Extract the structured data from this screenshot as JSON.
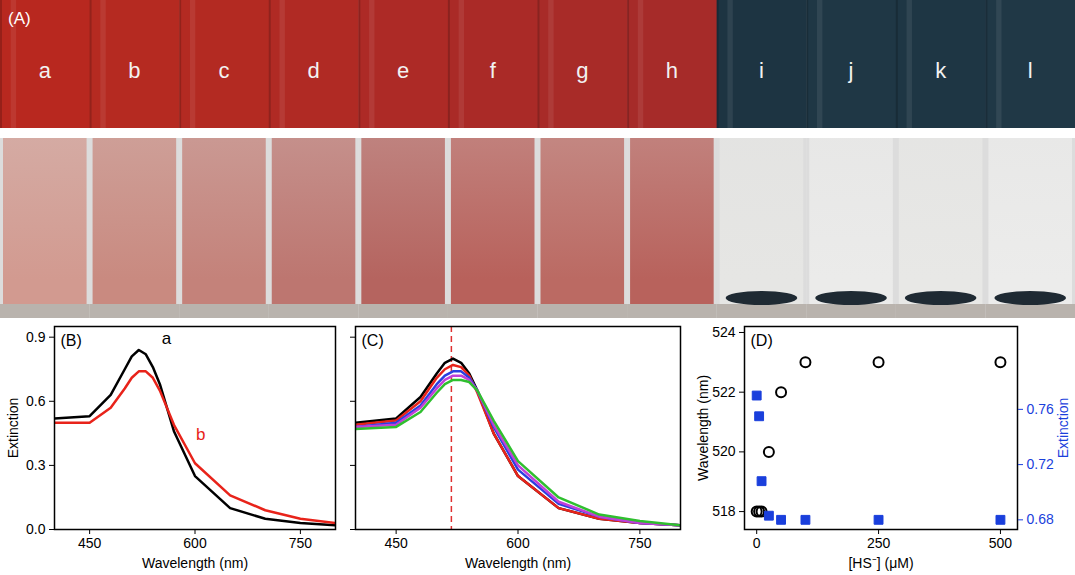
{
  "panel_a": {
    "label": "(A)",
    "samples": [
      "a",
      "b",
      "c",
      "d",
      "e",
      "f",
      "g",
      "h",
      "i",
      "j",
      "k",
      "l"
    ],
    "colors": [
      "#b8281f",
      "#b52a21",
      "#b32a22",
      "#b02a24",
      "#ad2a26",
      "#aa2a27",
      "#a82b28",
      "#a62b29",
      "#1d3442",
      "#1f3745",
      "#1e3644",
      "#203846"
    ],
    "lower_colors": [
      "#d29a90",
      "#c98a80",
      "#c4827a",
      "#bd7670",
      "#b5645f",
      "#b8615b",
      "#bb6a63",
      "#b8625c",
      "#e6e6e4",
      "#ebebea",
      "#e8e8e6",
      "#ececeb"
    ]
  },
  "chart_data": [
    {
      "type": "line",
      "title": "(B)",
      "x_label": "Wavelength (nm)",
      "y_label": "Extinction",
      "x": [
        400,
        450,
        480,
        500,
        510,
        520,
        530,
        540,
        550,
        570,
        600,
        650,
        700,
        750,
        800
      ],
      "series": [
        {
          "name": "a",
          "color": "#000000",
          "values": [
            0.52,
            0.53,
            0.63,
            0.75,
            0.81,
            0.84,
            0.82,
            0.76,
            0.68,
            0.46,
            0.25,
            0.1,
            0.05,
            0.03,
            0.02
          ]
        },
        {
          "name": "b",
          "color": "#e8231a",
          "values": [
            0.5,
            0.5,
            0.57,
            0.66,
            0.71,
            0.74,
            0.74,
            0.71,
            0.65,
            0.49,
            0.31,
            0.16,
            0.09,
            0.05,
            0.03
          ]
        }
      ],
      "xlim": [
        400,
        800
      ],
      "xticks": [
        450,
        600,
        750
      ],
      "ylim": [
        0,
        0.95
      ],
      "yticks": [
        {
          "value": 0,
          "label": "0.0"
        },
        0.3,
        0.6,
        0.9
      ]
    },
    {
      "type": "line",
      "title": "(C)",
      "x_label": "Wavelength (nm)",
      "x": [
        400,
        450,
        480,
        500,
        510,
        520,
        530,
        540,
        550,
        570,
        600,
        650,
        700,
        750,
        800
      ],
      "series": [
        {
          "color": "#000000",
          "values": [
            0.5,
            0.52,
            0.62,
            0.73,
            0.78,
            0.8,
            0.78,
            0.73,
            0.65,
            0.45,
            0.25,
            0.1,
            0.05,
            0.03,
            0.02
          ]
        },
        {
          "color": "#e8231a",
          "values": [
            0.49,
            0.51,
            0.6,
            0.71,
            0.75,
            0.77,
            0.76,
            0.72,
            0.64,
            0.45,
            0.25,
            0.1,
            0.05,
            0.03,
            0.02
          ]
        },
        {
          "color": "#2a3fe0",
          "values": [
            0.48,
            0.5,
            0.58,
            0.68,
            0.72,
            0.74,
            0.74,
            0.71,
            0.65,
            0.48,
            0.28,
            0.12,
            0.06,
            0.03,
            0.02
          ]
        },
        {
          "color": "#c03fd8",
          "values": [
            0.48,
            0.49,
            0.57,
            0.66,
            0.7,
            0.72,
            0.72,
            0.7,
            0.65,
            0.49,
            0.3,
            0.13,
            0.06,
            0.03,
            0.02
          ]
        },
        {
          "color": "#2fbf2f",
          "values": [
            0.47,
            0.48,
            0.55,
            0.64,
            0.68,
            0.7,
            0.7,
            0.69,
            0.65,
            0.51,
            0.32,
            0.15,
            0.07,
            0.04,
            0.02
          ]
        }
      ],
      "vline": {
        "x": 518,
        "color": "#e03030",
        "line_style": "dashed"
      },
      "xlim": [
        400,
        800
      ],
      "xticks": [
        450,
        600,
        750
      ],
      "ylim": [
        0,
        0.95
      ],
      "yticks": [
        0,
        0.3,
        0.6,
        0.9
      ],
      "tick_labels": "x"
    },
    {
      "type": "scatter",
      "title": "(D)",
      "x_label": "[HS⁻] (μM)",
      "y_label": "Wavelength (nm)",
      "y2_label": "Extinction",
      "x": [
        0,
        5,
        10,
        25,
        50,
        100,
        250,
        500
      ],
      "series": [
        {
          "color": "#000000",
          "marker": "circle_open",
          "values": [
            518,
            518,
            518,
            520,
            522,
            523,
            523,
            523
          ]
        },
        {
          "color": "#1a3fdc",
          "marker": "square",
          "axis": "y2",
          "values": [
            0.77,
            0.755,
            0.708,
            0.683,
            0.68,
            0.68,
            0.68,
            0.68
          ]
        }
      ],
      "xlim": [
        -25,
        535
      ],
      "xticks": [
        0,
        250,
        500
      ],
      "ylim": [
        517.4,
        524.2
      ],
      "yticks": [
        518,
        520,
        522,
        524
      ],
      "y2lim": [
        0.673,
        0.82
      ],
      "y2ticks": [
        0.68,
        0.72,
        0.76
      ]
    }
  ]
}
